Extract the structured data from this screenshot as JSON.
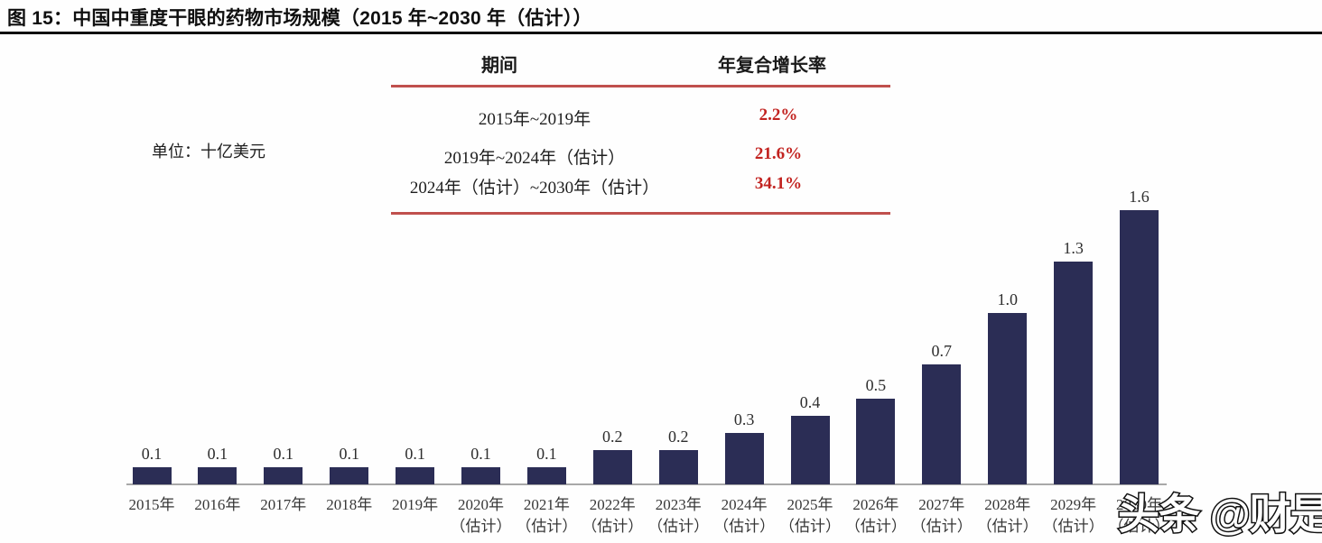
{
  "header": {
    "title": "图 15：中国中重度干眼的药物市场规模（2015 年~2030 年（估计））"
  },
  "unit_label": "单位：十亿美元",
  "cagr_table": {
    "col_period": "期间",
    "col_cagr": "年复合增长率"
  },
  "watermark": {
    "text": "头条 @财是"
  },
  "colors": {
    "bar": "#2B2D55",
    "rule_red": "#C0504D",
    "cagr_text_red": "#C22320",
    "axis_gray": "#A8A8A8",
    "title_black": "#0f0f0f"
  },
  "chart_data": {
    "type": "bar",
    "title": "中国中重度干眼的药物市场规模（2015年~2030年（估计））",
    "unit": "十亿美元",
    "categories": [
      "2015年",
      "2016年",
      "2017年",
      "2018年",
      "2019年",
      "2020年",
      "2021年",
      "2022年",
      "2023年",
      "2024年",
      "2025年",
      "2026年",
      "2027年",
      "2028年",
      "2029年",
      "2030年"
    ],
    "values": [
      0.1,
      0.1,
      0.1,
      0.1,
      0.1,
      0.1,
      0.1,
      0.2,
      0.2,
      0.3,
      0.4,
      0.5,
      0.7,
      1.0,
      1.3,
      1.6
    ],
    "estimate_note": "（估计）",
    "estimate_from_index": 5,
    "value_labels_shown": true,
    "xlabel": "",
    "ylabel": "十亿美元",
    "ylim": [
      0,
      1.7
    ],
    "grid": false,
    "legend": "none",
    "cagr_rows": [
      {
        "period": "2015年~2019年",
        "cagr": "2.2%"
      },
      {
        "period": "2019年~2024年（估计）",
        "cagr": "21.6%"
      },
      {
        "period": "2024年（估计）~2030年（估计）",
        "cagr": "34.1%"
      }
    ]
  }
}
